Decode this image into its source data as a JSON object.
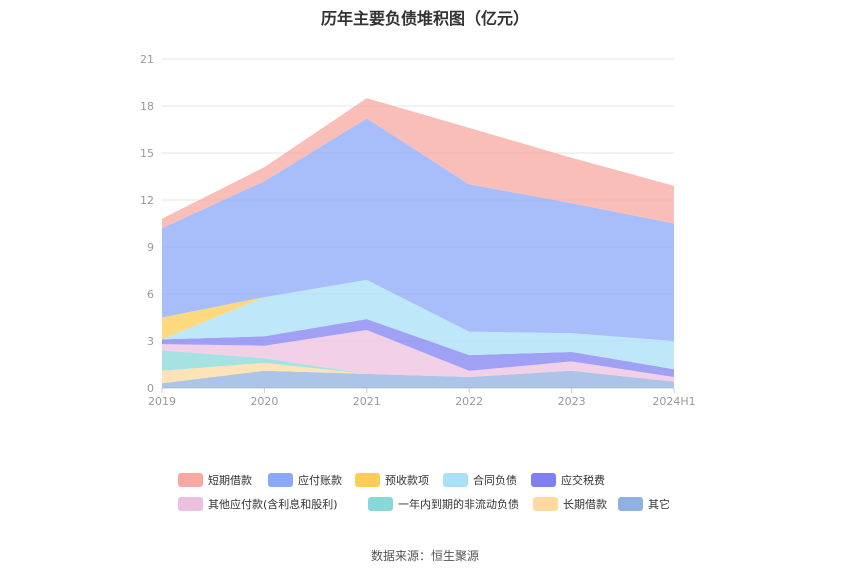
{
  "title": "历年主要负债堆积图（亿元）",
  "source": "数据来源：恒生聚源",
  "chart_data": {
    "type": "area",
    "stacked": true,
    "categories": [
      "2019",
      "2020",
      "2021",
      "2022",
      "2023",
      "2024H1"
    ],
    "ylim": [
      0,
      21
    ],
    "yticks": [
      0,
      3,
      6,
      9,
      12,
      15,
      18,
      21
    ],
    "grid": true,
    "legend_position": "bottom",
    "series": [
      {
        "name": "其它",
        "color": "#8fb0e0",
        "values": [
          0.3,
          1.1,
          0.9,
          0.7,
          1.1,
          0.4
        ]
      },
      {
        "name": "长期借款",
        "color": "#ffd9a0",
        "values": [
          0.8,
          0.5,
          0.0,
          0.0,
          0.0,
          0.0
        ]
      },
      {
        "name": "一年内到期的非流动负债",
        "color": "#88d8d8",
        "values": [
          1.3,
          0.3,
          0.0,
          0.0,
          0.0,
          0.0
        ]
      },
      {
        "name": "其他应付款(含利息和股利)",
        "color": "#ecc0e0",
        "values": [
          0.4,
          0.8,
          2.8,
          0.4,
          0.6,
          0.3
        ]
      },
      {
        "name": "应交税费",
        "color": "#8080f0",
        "values": [
          0.3,
          0.6,
          0.7,
          1.0,
          0.6,
          0.5
        ]
      },
      {
        "name": "合同负债",
        "color": "#a8e0f8",
        "values": [
          0.0,
          2.5,
          2.5,
          1.5,
          1.2,
          1.8
        ]
      },
      {
        "name": "预收款项",
        "color": "#ffcc55",
        "values": [
          1.4,
          0.0,
          0.0,
          0.0,
          0.0,
          0.0
        ]
      },
      {
        "name": "应付账款",
        "color": "#8aa8f8",
        "values": [
          5.7,
          7.4,
          10.3,
          9.4,
          8.3,
          7.5
        ]
      },
      {
        "name": "短期借款",
        "color": "#f8a8a0",
        "values": [
          0.6,
          0.9,
          1.3,
          3.6,
          2.9,
          2.4
        ]
      }
    ]
  },
  "legend_order": [
    "短期借款",
    "应付账款",
    "预收款项",
    "合同负债",
    "应交税费",
    "其他应付款(含利息和股利)",
    "一年内到期的非流动负债",
    "长期借款",
    "其它"
  ]
}
